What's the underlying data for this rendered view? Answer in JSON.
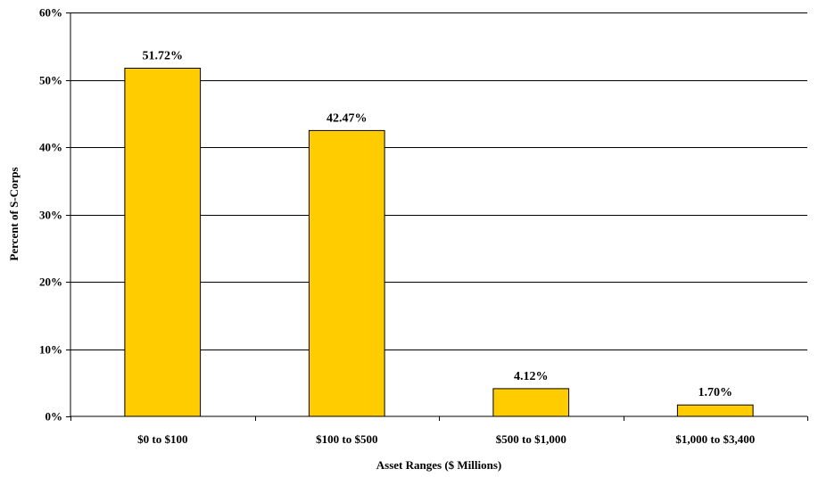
{
  "chart_data": {
    "type": "bar",
    "title": "",
    "xlabel": "Asset Ranges ($ Millions)",
    "ylabel": "Percent of S-Corps",
    "categories": [
      "$0 to $100",
      "$100 to $500",
      "$500 to $1,000",
      "$1,000 to $3,400"
    ],
    "values": [
      51.72,
      42.47,
      4.12,
      1.7
    ],
    "value_labels": [
      "51.72%",
      "42.47%",
      "4.12%",
      "1.70%"
    ],
    "ylim": [
      0,
      60
    ],
    "yticks": [
      0,
      10,
      20,
      30,
      40,
      50,
      60
    ],
    "ytick_labels": [
      "0%",
      "10%",
      "20%",
      "30%",
      "40%",
      "50%",
      "60%"
    ],
    "grid": true,
    "legend": "none",
    "colors": {
      "bar_fill": "#FFCC00",
      "bar_stroke": "#000000",
      "grid": "#000000"
    }
  }
}
